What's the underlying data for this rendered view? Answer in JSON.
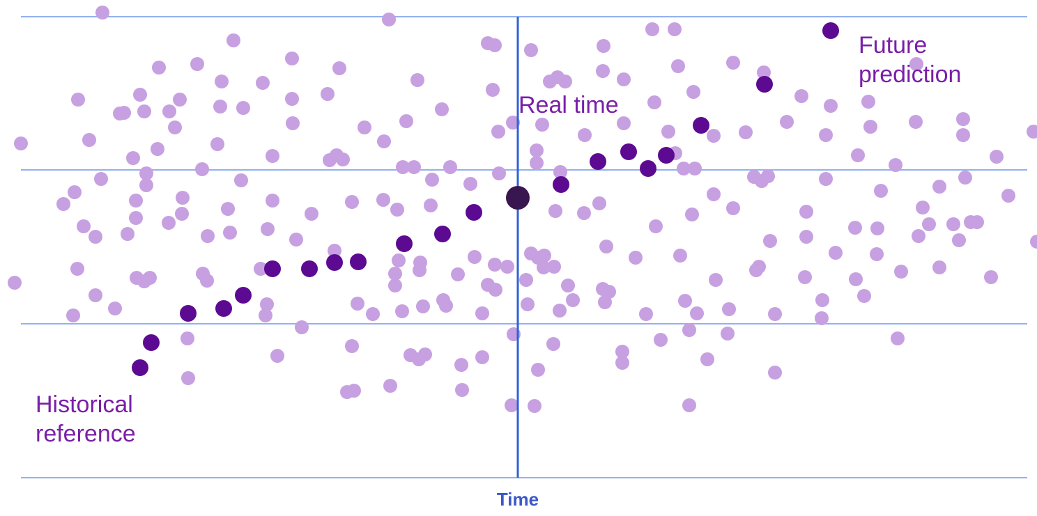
{
  "labels": {
    "future": "Future\nprediction",
    "real_time": "Real time",
    "historical": "Historical\nreference",
    "x_axis": "Time"
  },
  "colors": {
    "background_dot": "#c7a0e1",
    "highlight_dot": "#5d0a92",
    "current_dot": "#3a1650",
    "grid_line": "#93b0f1",
    "divider_line": "#2f63d6",
    "label_text": "#7a1fa8",
    "axis_text": "#3b57c9"
  },
  "highlighted_series_count": 18
}
